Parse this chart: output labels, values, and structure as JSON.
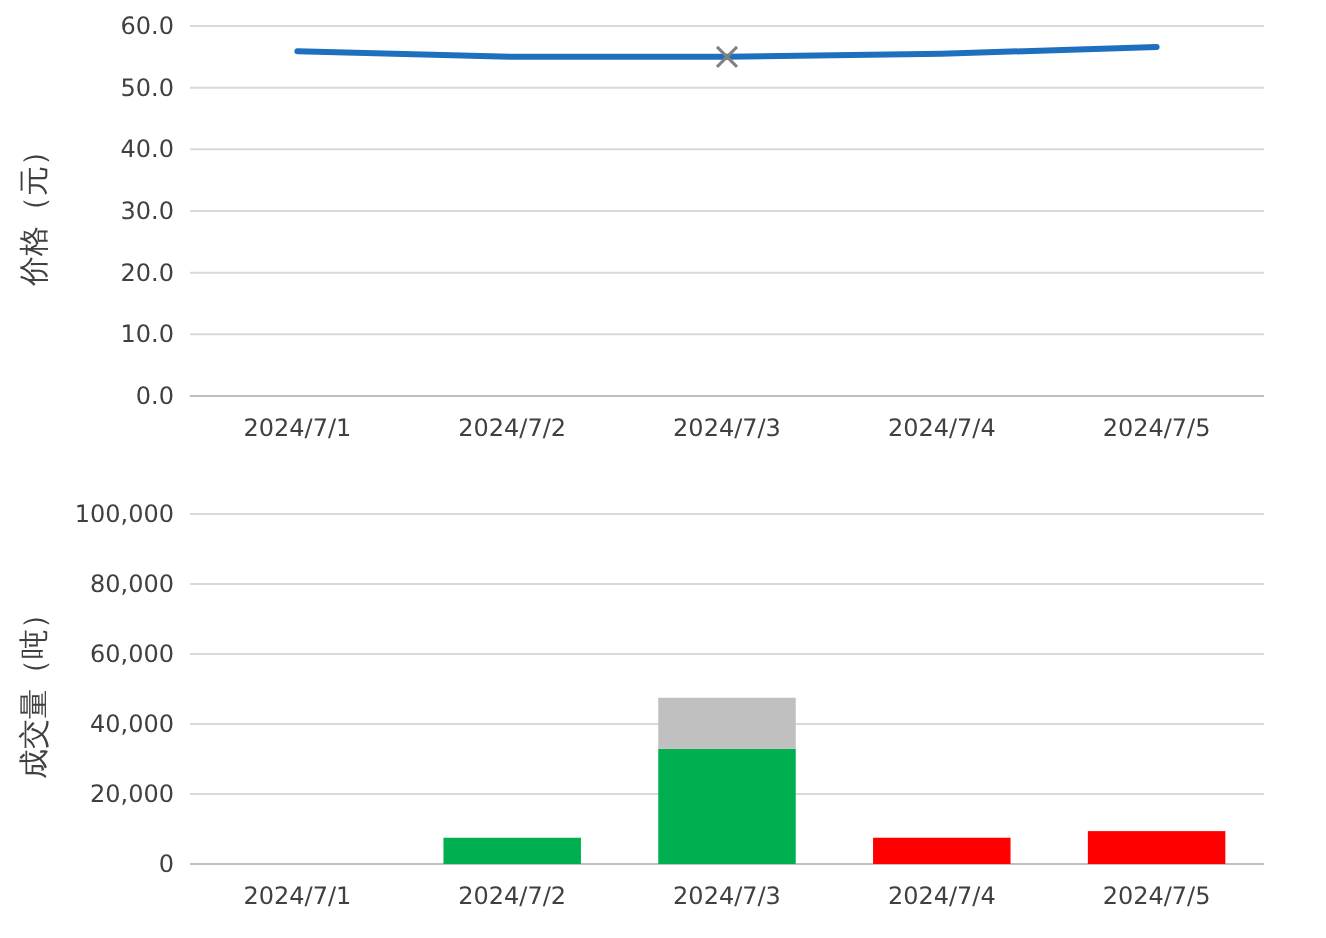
{
  "chart_data": [
    {
      "type": "line",
      "ylabel": "价格（元）",
      "categories": [
        "2024/7/1",
        "2024/7/2",
        "2024/7/3",
        "2024/7/4",
        "2024/7/5"
      ],
      "ylim": [
        0,
        60
      ],
      "yticks": [
        {
          "value": 0,
          "label": "0.0"
        },
        {
          "value": 10,
          "label": "10.0"
        },
        {
          "value": 20,
          "label": "20.0"
        },
        {
          "value": 30,
          "label": "30.0"
        },
        {
          "value": 40,
          "label": "40.0"
        },
        {
          "value": 50,
          "label": "50.0"
        },
        {
          "value": 60,
          "label": "60.0"
        }
      ],
      "grid": "y",
      "series": [
        {
          "color": "#1f6fbf",
          "values": [
            55.9,
            55.0,
            55.0,
            55.5,
            56.6
          ]
        },
        {
          "type": "scatter",
          "marker": "cross",
          "color": "#808080",
          "values": [
            null,
            null,
            55.0,
            null,
            null
          ]
        }
      ]
    },
    {
      "type": "bar",
      "stacked": true,
      "ylabel": "成交量（吨）",
      "categories": [
        "2024/7/1",
        "2024/7/2",
        "2024/7/3",
        "2024/7/4",
        "2024/7/5"
      ],
      "ylim": [
        0,
        100000
      ],
      "yticks": [
        {
          "value": 0,
          "label": "0"
        },
        {
          "value": 20000,
          "label": "20,000"
        },
        {
          "value": 40000,
          "label": "40,000"
        },
        {
          "value": 60000,
          "label": "60,000"
        },
        {
          "value": 80000,
          "label": "80,000"
        },
        {
          "value": 100000,
          "label": "100,000"
        }
      ],
      "grid": "y",
      "series": [
        {
          "color": "#00b050",
          "values": [
            null,
            7500,
            32900,
            null,
            null
          ]
        },
        {
          "color": "#c0c0c0",
          "values": [
            null,
            null,
            14600,
            null,
            null
          ]
        },
        {
          "color": "#ff0000",
          "values": [
            null,
            null,
            null,
            7500,
            9400
          ]
        }
      ]
    }
  ]
}
